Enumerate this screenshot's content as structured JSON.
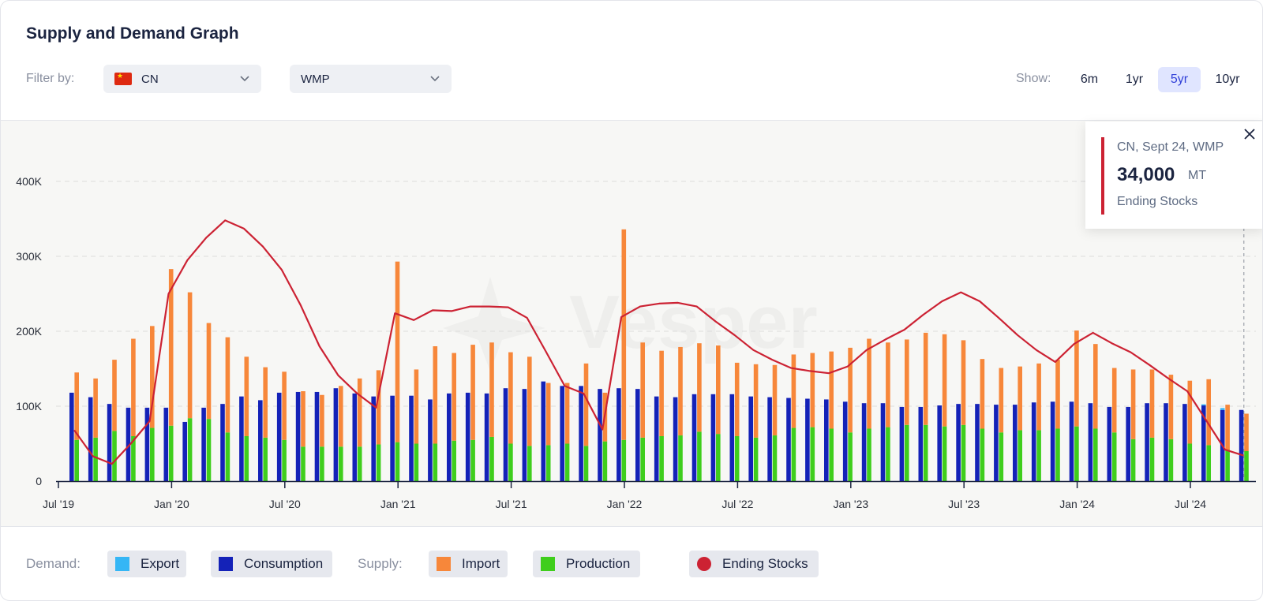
{
  "header": {
    "title": "Supply and Demand Graph"
  },
  "filters": {
    "label": "Filter by:",
    "country": "CN",
    "product": "WMP"
  },
  "show": {
    "label": "Show:",
    "options": [
      "6m",
      "1yr",
      "5yr",
      "10yr"
    ],
    "active": "5yr"
  },
  "tooltip": {
    "line1": "CN, Sept 24, WMP",
    "value": "34,000",
    "unit": "MT",
    "series": "Ending Stocks"
  },
  "legend": {
    "demand_label": "Demand:",
    "supply_label": "Supply:",
    "items": [
      "Export",
      "Consumption",
      "Import",
      "Production",
      "Ending Stocks"
    ]
  },
  "watermark": "Vesper",
  "colors": {
    "export": "#35b6f5",
    "consumption": "#1422b8",
    "import": "#f7873a",
    "production": "#3fce1c",
    "ending_stocks": "#cc2233"
  },
  "chart_data": {
    "type": "bar",
    "y_ticks": [
      "0",
      "100K",
      "200K",
      "300K",
      "400K"
    ],
    "ylim": [
      0,
      450000
    ],
    "x_tick_labels": [
      "Jul '19",
      "Jan '20",
      "Jul '20",
      "Jan '21",
      "Jul '21",
      "Jan '22",
      "Jul '22",
      "Jan '23",
      "Jul '23",
      "Jan '24",
      "Jul '24"
    ],
    "months": [
      "2019-07",
      "2019-08",
      "2019-09",
      "2019-10",
      "2019-11",
      "2019-12",
      "2020-01",
      "2020-02",
      "2020-03",
      "2020-04",
      "2020-05",
      "2020-06",
      "2020-07",
      "2020-08",
      "2020-09",
      "2020-10",
      "2020-11",
      "2020-12",
      "2021-01",
      "2021-02",
      "2021-03",
      "2021-04",
      "2021-05",
      "2021-06",
      "2021-07",
      "2021-08",
      "2021-09",
      "2021-10",
      "2021-11",
      "2021-12",
      "2022-01",
      "2022-02",
      "2022-03",
      "2022-04",
      "2022-05",
      "2022-06",
      "2022-07",
      "2022-08",
      "2022-09",
      "2022-10",
      "2022-11",
      "2022-12",
      "2023-01",
      "2023-02",
      "2023-03",
      "2023-04",
      "2023-05",
      "2023-06",
      "2023-07",
      "2023-08",
      "2023-09",
      "2023-10",
      "2023-11",
      "2023-12",
      "2024-01",
      "2024-02",
      "2024-03",
      "2024-04",
      "2024-05",
      "2024-06",
      "2024-07",
      "2024-08",
      "2024-09"
    ],
    "series": [
      {
        "name": "Export",
        "values": [
          0,
          0,
          0,
          0,
          0,
          0,
          0,
          0,
          0,
          0,
          0,
          0,
          0,
          0,
          0,
          0,
          0,
          0,
          0,
          0,
          0,
          0,
          0,
          0,
          0,
          0,
          0,
          0,
          0,
          0,
          0,
          0,
          0,
          0,
          0,
          0,
          0,
          0,
          0,
          0,
          0,
          0,
          0,
          0,
          0,
          0,
          0,
          0,
          0,
          0,
          0,
          0,
          0,
          0,
          0,
          0,
          0,
          0,
          0,
          0,
          1500,
          2500,
          0
        ]
      },
      {
        "name": "Consumption",
        "values": [
          118000,
          112000,
          103000,
          98000,
          98000,
          98000,
          79000,
          98000,
          103000,
          113000,
          108000,
          118000,
          119000,
          119000,
          124000,
          117000,
          113000,
          114000,
          114000,
          109000,
          117000,
          118000,
          117000,
          124000,
          123000,
          133000,
          127000,
          127000,
          123000,
          124000,
          123000,
          113000,
          112000,
          116000,
          116000,
          116000,
          113000,
          112000,
          111000,
          110000,
          109000,
          106000,
          104000,
          104000,
          99000,
          99000,
          101000,
          103000,
          103000,
          102000,
          102000,
          105000,
          106000,
          106000,
          104000,
          99000,
          99000,
          104000,
          104000,
          103000,
          101000,
          95000,
          95000
        ]
      },
      {
        "name": "Import",
        "values": [
          90000,
          79000,
          95000,
          130000,
          136000,
          209000,
          168000,
          128000,
          127000,
          106000,
          94000,
          91000,
          74000,
          69000,
          81000,
          91000,
          99000,
          241000,
          99000,
          130000,
          117000,
          127000,
          126000,
          122000,
          119000,
          83000,
          81000,
          110000,
          65000,
          281000,
          127000,
          114000,
          118000,
          118000,
          118000,
          98000,
          98000,
          94000,
          98000,
          99000,
          103000,
          113000,
          120000,
          113000,
          114000,
          123000,
          123000,
          113000,
          93000,
          86000,
          85000,
          89000,
          92000,
          128000,
          113000,
          86000,
          93000,
          91000,
          86000,
          84000,
          88000,
          60000,
          50000
        ]
      },
      {
        "name": "Production",
        "values": [
          55000,
          58000,
          67000,
          60000,
          71000,
          74000,
          84000,
          83000,
          65000,
          60000,
          58000,
          55000,
          46000,
          46000,
          46000,
          46000,
          49000,
          52000,
          50000,
          50000,
          54000,
          55000,
          59000,
          50000,
          47000,
          48000,
          50000,
          47000,
          53000,
          55000,
          58000,
          60000,
          61000,
          66000,
          63000,
          60000,
          58000,
          61000,
          71000,
          72000,
          70000,
          65000,
          70000,
          72000,
          75000,
          75000,
          73000,
          75000,
          70000,
          65000,
          68000,
          68000,
          70000,
          73000,
          70000,
          65000,
          56000,
          58000,
          56000,
          50000,
          48000,
          42000,
          40000
        ]
      },
      {
        "name": "Ending Stocks",
        "values": [
          68000,
          33000,
          23000,
          50000,
          80000,
          250000,
          295000,
          325000,
          348000,
          337000,
          313000,
          282000,
          235000,
          180000,
          141000,
          117000,
          98000,
          224000,
          215000,
          228000,
          227000,
          233000,
          233000,
          232000,
          218000,
          173000,
          127000,
          117000,
          69000,
          219000,
          233000,
          237000,
          238000,
          233000,
          213000,
          195000,
          175000,
          162000,
          151000,
          147000,
          144000,
          153000,
          175000,
          189000,
          202000,
          222000,
          240000,
          252000,
          240000,
          218000,
          195000,
          175000,
          159000,
          183000,
          198000,
          184000,
          172000,
          155000,
          137000,
          120000,
          81000,
          42000,
          34000
        ]
      }
    ]
  }
}
